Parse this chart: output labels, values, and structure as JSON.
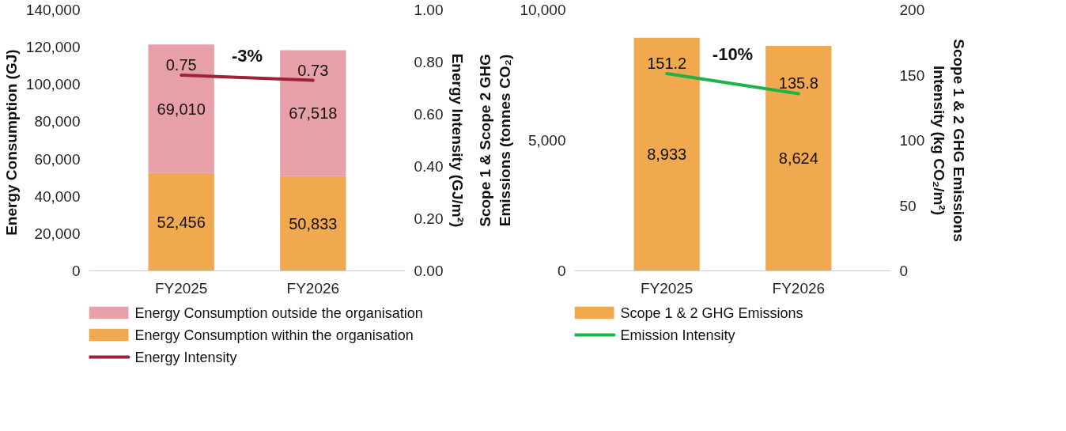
{
  "chart_data": [
    {
      "type": "bar",
      "stacked": true,
      "categories": [
        "FY2025",
        "FY2026"
      ],
      "ylabel": "Energy  Consumption (GJ)",
      "y2label": "Energy Intensity (GJ/m²)",
      "ylim": [
        0,
        140000
      ],
      "yticks": [
        0,
        {
          "value": 20000,
          "label": "20,000"
        },
        {
          "value": 40000,
          "label": "40,000"
        },
        {
          "value": 60000,
          "label": "60,000"
        },
        {
          "value": 80000,
          "label": "80,000"
        },
        {
          "value": 100000,
          "label": "100,000"
        },
        {
          "value": 120000,
          "label": "120,000"
        },
        {
          "value": 140000,
          "label": "140,000"
        }
      ],
      "y2lim": [
        0,
        1
      ],
      "y2ticks": [
        {
          "value": 0,
          "label": "0.00"
        },
        {
          "value": 0.2,
          "label": "0.20"
        },
        {
          "value": 0.4,
          "label": "0.40"
        },
        {
          "value": 0.6,
          "label": "0.60"
        },
        {
          "value": 0.8,
          "label": "0.80"
        },
        {
          "value": 1,
          "label": "1.00"
        }
      ],
      "grid": false,
      "legend": "bottom",
      "annotations": [
        "-3%"
      ],
      "series": [
        {
          "name": "Energy Consumption within the organisation",
          "color": "#f0a94e",
          "values": [
            52456,
            50833
          ],
          "value_labels": [
            "52,456",
            "50,833"
          ]
        },
        {
          "name": "Energy Consumption outside the organisation",
          "color": "#e8a0a8",
          "values": [
            69010,
            67518
          ],
          "value_labels": [
            "69,010",
            "67,518"
          ]
        },
        {
          "name": "Energy Intensity",
          "type": "line",
          "axis": "y2",
          "color": "#9b2335",
          "values": [
            0.75,
            0.73
          ],
          "value_labels": [
            "0.75",
            "0.73"
          ]
        }
      ]
    },
    {
      "type": "bar",
      "categories": [
        "FY2025",
        "FY2026"
      ],
      "ylabel": "Scope 1 & Scope 2 GHG Emissions (tonnes CO₂)",
      "y2label": "Scope 1 & 2 GHG Emissions Intensity (kg CO₂/m²)",
      "ylim": [
        0,
        10000
      ],
      "yticks": [
        0,
        {
          "value": 5000,
          "label": "5,000"
        },
        {
          "value": 10000,
          "label": "10,000"
        }
      ],
      "y2lim": [
        0,
        200
      ],
      "y2ticks": [
        0,
        50,
        100,
        150,
        200
      ],
      "grid": false,
      "legend": "bottom",
      "annotations": [
        "-10%"
      ],
      "series": [
        {
          "name": "Scope 1 & 2 GHG Emissions",
          "color": "#f0a94e",
          "values": [
            8933,
            8624
          ],
          "value_labels": [
            "8,933",
            "8,624"
          ]
        },
        {
          "name": "Emission Intensity",
          "type": "line",
          "axis": "y2",
          "color": "#1db34a",
          "values": [
            151.2,
            135.8
          ],
          "value_labels": [
            "151.2",
            "135.8"
          ]
        }
      ]
    }
  ]
}
